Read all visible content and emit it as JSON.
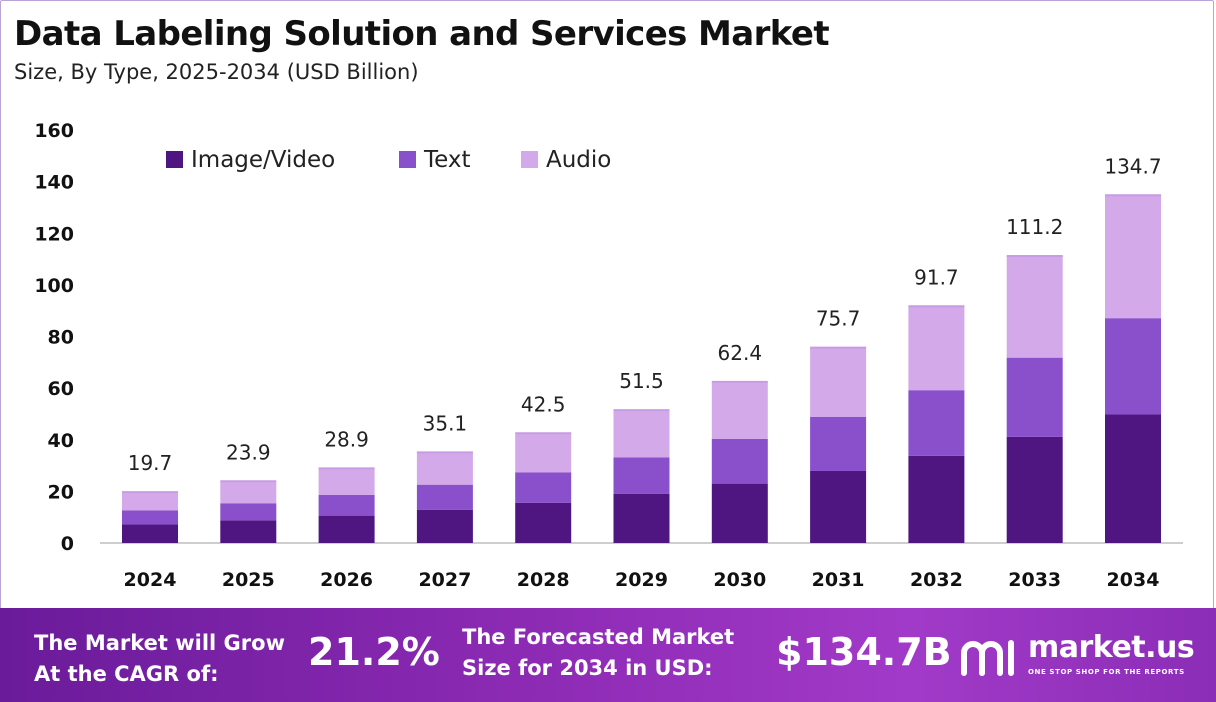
{
  "header": {
    "title": "Data Labeling Solution and Services Market",
    "subtitle": "Size, By Type, 2025-2034 (USD Billion)"
  },
  "chart_data": {
    "type": "bar",
    "stacked": true,
    "categories": [
      "2024",
      "2025",
      "2026",
      "2027",
      "2028",
      "2029",
      "2030",
      "2031",
      "2032",
      "2033",
      "2034"
    ],
    "series": [
      {
        "name": "Image/Video",
        "color": "#4f1681",
        "values": [
          7.2,
          8.8,
          10.6,
          12.9,
          15.6,
          19.0,
          23.0,
          27.9,
          33.8,
          41.1,
          49.8
        ]
      },
      {
        "name": "Text",
        "color": "#8a4fcb",
        "values": [
          5.4,
          6.6,
          8.0,
          9.7,
          11.8,
          14.2,
          17.3,
          21.0,
          25.4,
          30.7,
          37.3
        ]
      },
      {
        "name": "Audio",
        "color": "#d3a9ea",
        "values": [
          7.1,
          8.5,
          10.3,
          12.5,
          15.1,
          18.3,
          22.1,
          26.8,
          32.5,
          39.4,
          47.6
        ]
      }
    ],
    "totals": [
      "19.7",
      "23.9",
      "28.9",
      "35.1",
      "42.5",
      "51.5",
      "62.4",
      "75.7",
      "91.7",
      "111.2",
      "134.7"
    ],
    "ylim": [
      0,
      160
    ],
    "yticks": [
      0,
      20,
      40,
      60,
      80,
      100,
      120,
      140,
      160
    ],
    "legend_position": "top-left",
    "grid": false
  },
  "footer": {
    "cagr_label_line1": "The Market will Grow",
    "cagr_label_line2": "At the CAGR of:",
    "cagr_value": "21.2%",
    "forecast_label_line1": "The Forecasted Market",
    "forecast_label_line2": "Size for 2034 in USD:",
    "forecast_value": "$134.7B",
    "brand_name": "market.us",
    "brand_tagline": "ONE STOP SHOP FOR THE REPORTS"
  }
}
